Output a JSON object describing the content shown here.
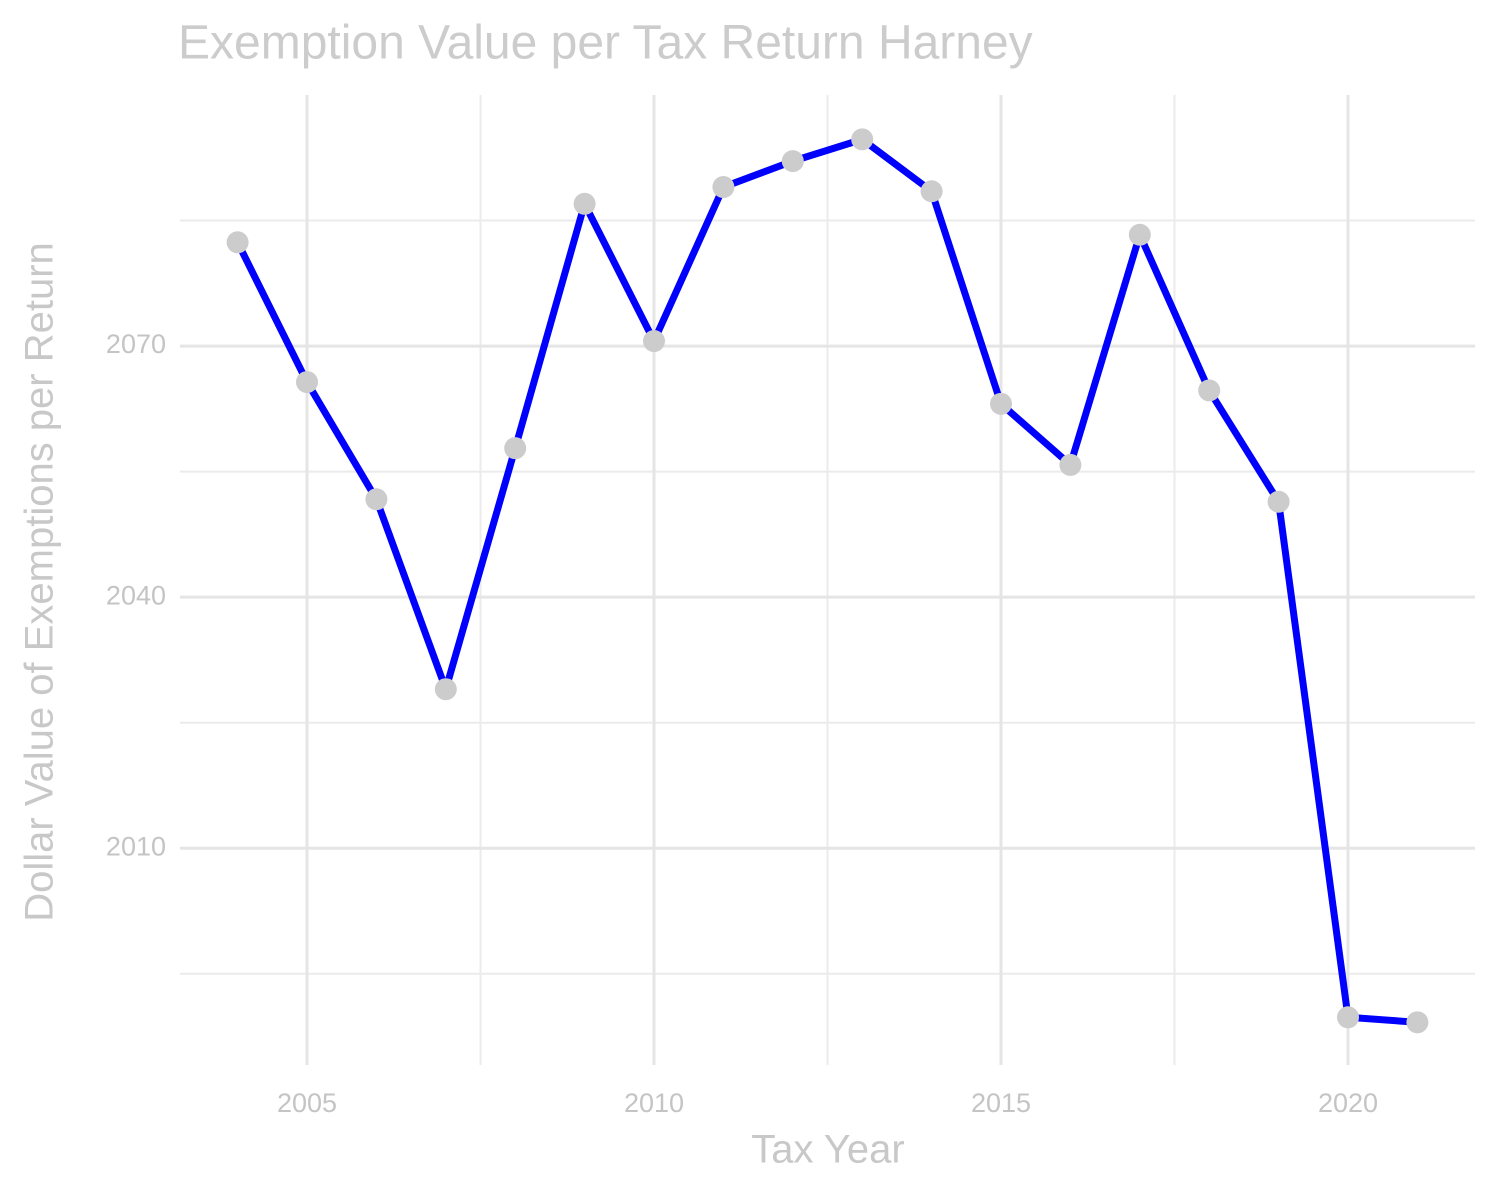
{
  "chart_data": {
    "type": "line",
    "title": "Exemption Value per Tax Return Harney",
    "x_label": "Tax Year",
    "y_label": "Dollar Value of Exemptions per Return",
    "x": [
      2004,
      2005,
      2006,
      2007,
      2008,
      2009,
      2010,
      2011,
      2012,
      2013,
      2014,
      2015,
      2016,
      2017,
      2018,
      2019,
      2020,
      2021
    ],
    "series": [
      {
        "color": "#0000ff",
        "point_color": "#cccccc",
        "values": [
          2082.4,
          2065.7,
          2051.7,
          2029.0,
          2057.8,
          2087.0,
          2070.6,
          2089.0,
          2092.1,
          2094.7,
          2088.5,
          2063.1,
          2055.8,
          2083.3,
          2064.7,
          2051.4,
          1989.8,
          1989.2
        ]
      }
    ],
    "xlim": [
      2003.17,
      2021.83
    ],
    "ylim": [
      1984.1,
      2100.0
    ],
    "xticks": [
      2005,
      2010,
      2015,
      2020
    ],
    "yticks": [
      2010,
      2040,
      2070
    ],
    "x_minor_grid": [
      2007.5,
      2012.5,
      2017.5
    ],
    "y_minor_grid": [
      1995,
      2025,
      2055,
      2085
    ],
    "grid": true
  }
}
